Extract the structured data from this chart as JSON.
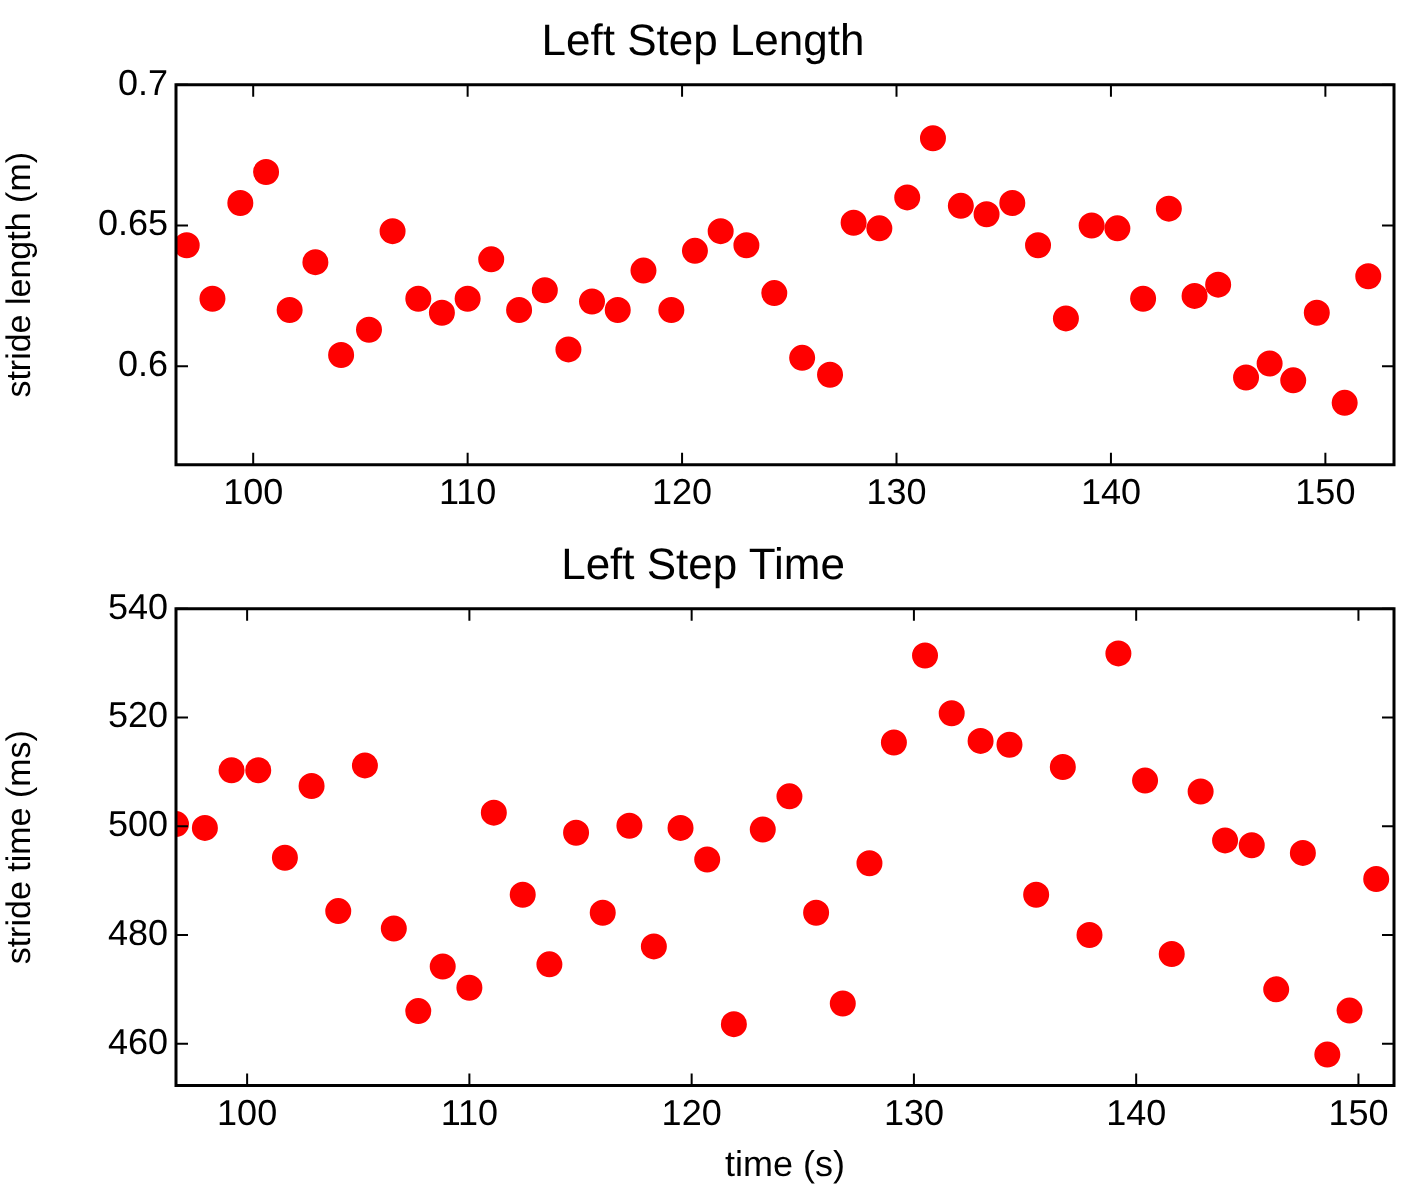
{
  "chart_data": [
    {
      "type": "scatter",
      "title": "Left Step Length",
      "ylabel": "stride length (m)",
      "xlim": [
        96.4,
        153.2
      ],
      "xticks": [
        100,
        110,
        120,
        130,
        140,
        150
      ],
      "ylim": [
        0.565,
        0.7
      ],
      "yticks": [
        {
          "value": 0.6,
          "label": "0.6"
        },
        0.65,
        {
          "value": 0.7,
          "label": "0.7"
        }
      ],
      "grid": false,
      "legend": false,
      "marker": "circle",
      "series": [
        {
          "color": "#ff0000",
          "x": [
            96.9,
            98.1,
            99.4,
            100.6,
            101.7,
            102.9,
            104.1,
            105.4,
            106.5,
            107.7,
            108.8,
            110.0,
            111.1,
            112.4,
            113.6,
            114.7,
            115.8,
            117.0,
            118.2,
            119.5,
            120.6,
            121.8,
            123.0,
            124.3,
            125.6,
            126.9,
            128.0,
            129.2,
            130.5,
            131.7,
            133.0,
            134.2,
            135.4,
            136.6,
            137.9,
            139.1,
            140.3,
            141.5,
            142.7,
            143.9,
            145.0,
            146.3,
            147.4,
            148.5,
            149.6,
            150.9,
            152.0
          ],
          "values": [
            0.643,
            0.624,
            0.658,
            0.669,
            0.62,
            0.637,
            0.604,
            0.613,
            0.648,
            0.624,
            0.619,
            0.624,
            0.638,
            0.62,
            0.627,
            0.606,
            0.623,
            0.62,
            0.634,
            0.62,
            0.641,
            0.648,
            0.643,
            0.626,
            0.603,
            0.597,
            0.651,
            0.649,
            0.66,
            0.681,
            0.657,
            0.654,
            0.658,
            0.643,
            0.617,
            0.65,
            0.649,
            0.624,
            0.656,
            0.625,
            0.629,
            0.596,
            0.601,
            0.595,
            0.619,
            0.587,
            0.632
          ]
        }
      ]
    },
    {
      "type": "scatter",
      "title": "Left Step Time",
      "xlabel": "time (s)",
      "ylabel": "stride time (ms)",
      "xlim": [
        96.8,
        151.6
      ],
      "xticks": [
        100,
        110,
        120,
        130,
        140,
        150
      ],
      "ylim": [
        452.3,
        540
      ],
      "yticks": [
        460,
        480,
        500,
        520,
        540
      ],
      "grid": false,
      "legend": false,
      "marker": "circle",
      "series": [
        {
          "color": "#ff0000",
          "x": [
            96.8,
            98.1,
            99.3,
            100.5,
            101.7,
            102.9,
            104.1,
            105.3,
            106.6,
            107.7,
            108.8,
            110.0,
            111.1,
            112.4,
            113.6,
            114.8,
            116.0,
            117.2,
            118.3,
            119.5,
            120.7,
            121.9,
            123.2,
            124.4,
            125.6,
            126.8,
            128.0,
            129.1,
            130.5,
            131.7,
            133.0,
            134.3,
            135.5,
            136.7,
            137.9,
            139.2,
            140.4,
            141.6,
            142.9,
            144.0,
            145.2,
            146.3,
            147.5,
            148.6,
            149.6,
            150.8
          ],
          "values": [
            500.4,
            499.7,
            510.3,
            510.3,
            494.2,
            507.4,
            484.4,
            511.2,
            481.2,
            466.0,
            474.2,
            470.3,
            502.5,
            487.4,
            474.6,
            498.8,
            484.1,
            500.1,
            477.9,
            499.7,
            493.9,
            463.6,
            499.4,
            505.5,
            484.1,
            467.4,
            493.2,
            515.4,
            531.4,
            520.8,
            515.7,
            515.0,
            487.4,
            510.9,
            480.0,
            531.8,
            508.4,
            476.5,
            506.4,
            497.4,
            496.5,
            470.0,
            495.1,
            458.0,
            466.1,
            490.3
          ]
        }
      ]
    }
  ]
}
